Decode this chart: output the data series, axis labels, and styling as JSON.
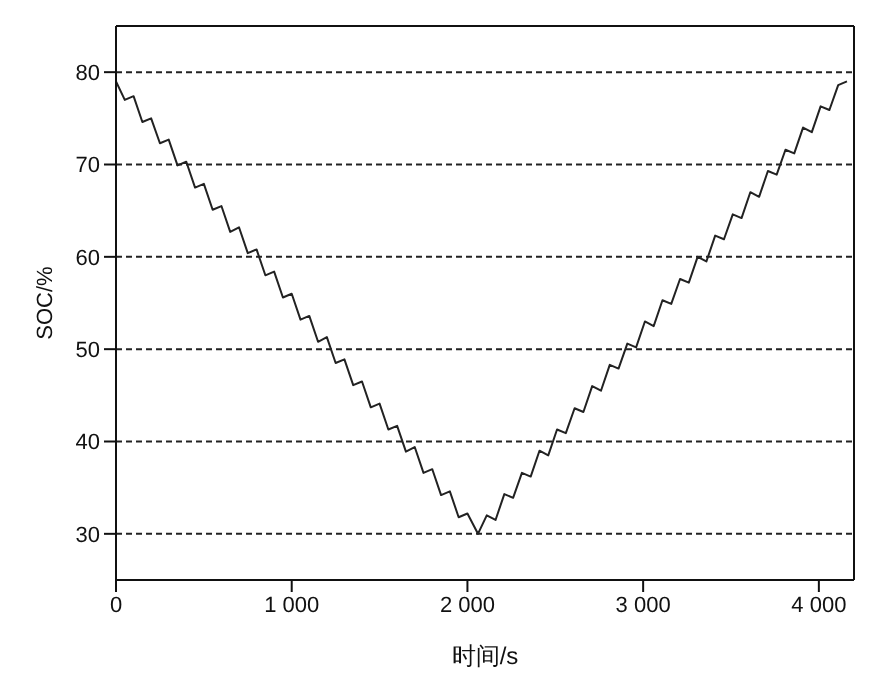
{
  "chart_data": {
    "type": "line",
    "xlabel": "时间/s",
    "ylabel": "SOC/%",
    "xlim": [
      0,
      4200
    ],
    "ylim": [
      25,
      85
    ],
    "xticks": [
      0,
      {
        "value": 1000,
        "label": "1 000"
      },
      {
        "value": 2000,
        "label": "2 000"
      },
      {
        "value": 3000,
        "label": "3 000"
      },
      {
        "value": 4000,
        "label": "4 000"
      }
    ],
    "yticks": [
      30,
      40,
      50,
      60,
      70,
      80
    ],
    "grid": "y",
    "marker": "none",
    "line_style": "solid",
    "series": [
      {
        "color": "#222222",
        "x": [
          0,
          50,
          100,
          150,
          200,
          250,
          300,
          350,
          400,
          450,
          500,
          550,
          600,
          650,
          700,
          750,
          800,
          850,
          900,
          950,
          1000,
          1050,
          1100,
          1150,
          1200,
          1250,
          1300,
          1350,
          1400,
          1450,
          1500,
          1550,
          1600,
          1650,
          1700,
          1750,
          1800,
          1850,
          1900,
          1950,
          2000,
          2060,
          2110,
          2160,
          2210,
          2260,
          2310,
          2360,
          2410,
          2460,
          2510,
          2560,
          2610,
          2660,
          2710,
          2760,
          2810,
          2860,
          2910,
          2960,
          3010,
          3060,
          3110,
          3160,
          3210,
          3260,
          3310,
          3360,
          3410,
          3460,
          3510,
          3560,
          3610,
          3660,
          3710,
          3760,
          3810,
          3860,
          3910,
          3960,
          4010,
          4060,
          4110,
          4160
        ],
        "values": [
          79,
          77.0,
          77.4,
          74.6,
          75.0,
          72.3,
          72.7,
          69.9,
          70.3,
          67.5,
          67.9,
          65.1,
          65.5,
          62.7,
          63.2,
          60.4,
          60.8,
          58.0,
          58.4,
          55.6,
          56.0,
          53.2,
          53.6,
          50.8,
          51.3,
          48.5,
          48.9,
          46.1,
          46.5,
          43.7,
          44.1,
          41.3,
          41.7,
          38.9,
          39.4,
          36.6,
          37.0,
          34.2,
          34.6,
          31.8,
          32.2,
          30.0,
          32.0,
          31.5,
          34.3,
          33.9,
          36.6,
          36.2,
          39.0,
          38.5,
          41.3,
          40.9,
          43.6,
          43.2,
          46.0,
          45.5,
          48.3,
          47.9,
          50.6,
          50.2,
          53.0,
          52.5,
          55.3,
          54.9,
          57.6,
          57.2,
          60.0,
          59.5,
          62.3,
          61.9,
          64.6,
          64.2,
          67.0,
          66.5,
          69.3,
          68.9,
          71.6,
          71.2,
          74.0,
          73.5,
          76.3,
          75.9,
          78.6,
          79.0
        ]
      }
    ]
  }
}
